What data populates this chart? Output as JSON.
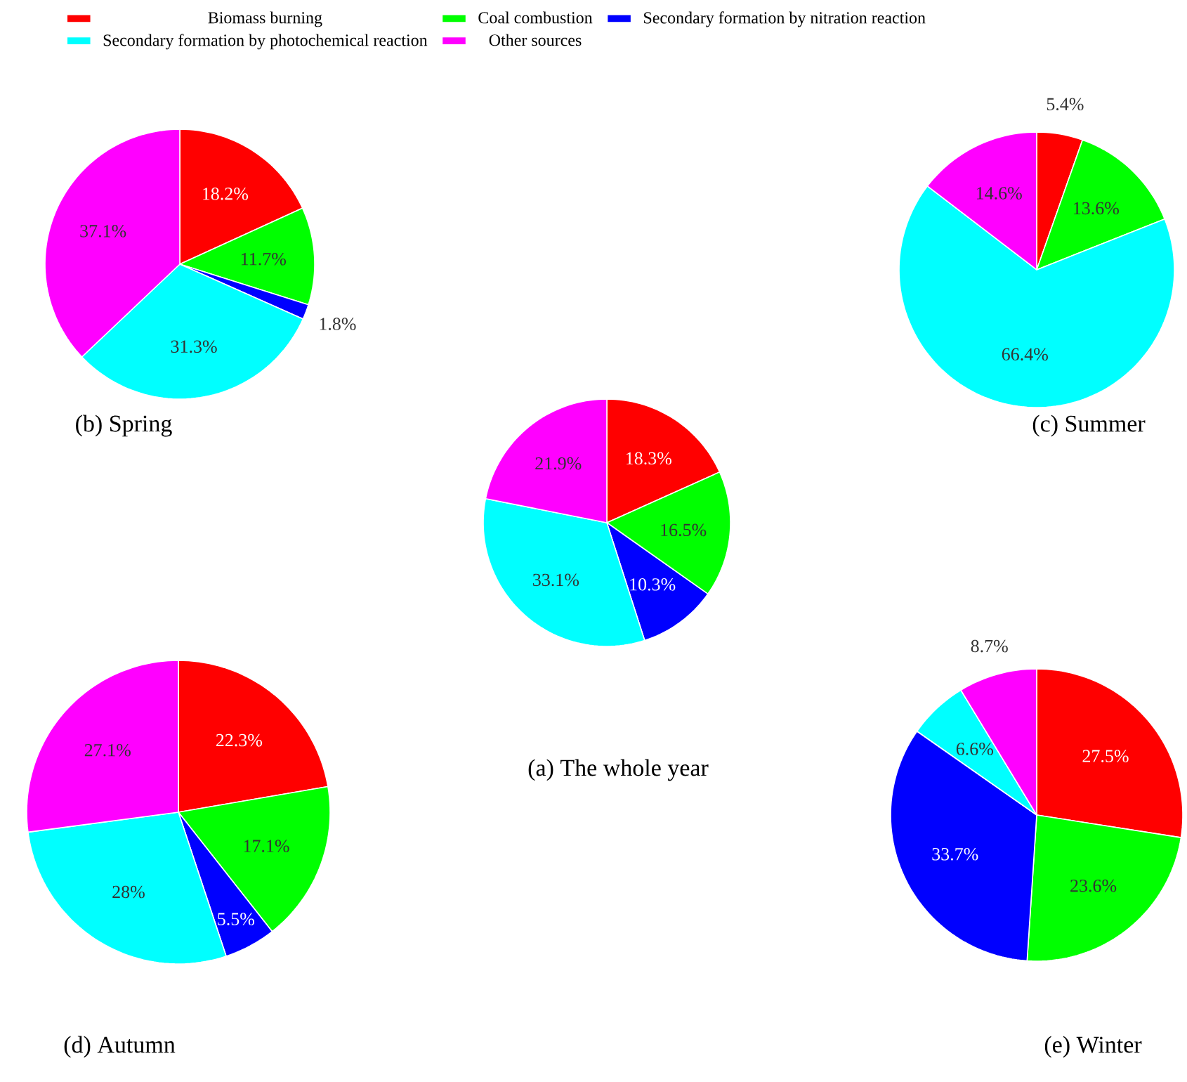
{
  "chart_data": [
    {
      "type": "pie",
      "title": "(b) Spring",
      "legend": "top",
      "categories": [
        "Biomass burning",
        "Coal combustion",
        "Secondary formation by nitration reaction",
        "Secondary formation by photochemical reaction",
        "Other sources"
      ],
      "values": [
        18.2,
        11.7,
        1.8,
        31.3,
        37.1
      ],
      "value_labels": [
        "18.2%",
        "11.7%",
        "1.8%",
        "31.3%",
        "37.1%"
      ],
      "colors": [
        "#ff0000",
        "#00ff00",
        "#0000ff",
        "#00ffff",
        "#ff00ff"
      ]
    },
    {
      "type": "pie",
      "title": "(c) Summer",
      "categories": [
        null,
        null,
        null,
        null
      ],
      "values": [
        5.4,
        13.6,
        66.4,
        14.6
      ],
      "value_labels": [
        "5.4%",
        "13.6%",
        "66.4%",
        "14.6%"
      ],
      "colors": [
        "#ff0000",
        "#00ff00",
        "#00ffff",
        "#ff00ff"
      ]
    },
    {
      "type": "pie",
      "title": "(a) The whole year",
      "categories": [
        null,
        null,
        null,
        null,
        null
      ],
      "values": [
        18.3,
        16.5,
        10.3,
        33.1,
        21.9
      ],
      "value_labels": [
        "18.3%",
        "16.5%",
        "10.3%",
        "33.1%",
        "21.9%"
      ],
      "colors": [
        "#ff0000",
        "#00ff00",
        "#0000ff",
        "#00ffff",
        "#ff00ff"
      ]
    },
    {
      "type": "pie",
      "title": "(d) Autumn",
      "categories": [
        null,
        null,
        null,
        null,
        null
      ],
      "values": [
        22.3,
        17.1,
        5.5,
        28,
        27.1
      ],
      "value_labels": [
        "22.3%",
        "17.1%",
        "5.5%",
        "28%",
        "27.1%"
      ],
      "colors": [
        "#ff0000",
        "#00ff00",
        "#0000ff",
        "#00ffff",
        "#ff00ff"
      ]
    },
    {
      "type": "pie",
      "title": "(e) Winter",
      "categories": [
        null,
        null,
        null,
        null,
        null
      ],
      "values": [
        27.5,
        23.6,
        33.7,
        6.6,
        8.7
      ],
      "value_labels": [
        "27.5%",
        "23.6%",
        "33.7%",
        "6.6%",
        "8.7%"
      ],
      "colors": [
        "#ff0000",
        "#00ff00",
        "#0000ff",
        "#00ffff",
        "#ff00ff"
      ]
    }
  ]
}
